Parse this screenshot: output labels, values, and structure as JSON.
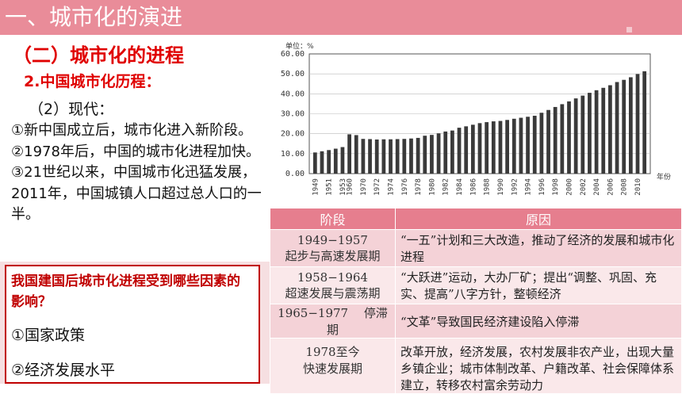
{
  "header": {
    "title": "一、城市化的演进"
  },
  "section": {
    "subtitle": "（二）城市化的进程",
    "heading": "2.中国城市化历程：",
    "subheading": "（2）现代：",
    "points": [
      "①新中国成立后，城市化进入新阶段。",
      "②1978年后，中国的城市化进程加快。",
      "③21世纪以来，中国城市化迅猛发展，2011年，中国城镇人口超过总人口的一半。"
    ]
  },
  "question": {
    "prompt": "我国建国后城市化进程受到哪些因素的影响？",
    "answers": [
      "①国家政策",
      "②经济发展水平"
    ]
  },
  "chart_data": {
    "type": "bar",
    "unit_label": "单位：%",
    "xlabel": "年份",
    "ylim": [
      0,
      60
    ],
    "yticks": [
      "0.00",
      "10.00",
      "20.00",
      "30.00",
      "40.00",
      "50.00",
      "60.00"
    ],
    "categories": [
      "1949",
      "1950",
      "1951",
      "1952",
      "1953",
      "1960",
      "1961",
      "1970",
      "1971",
      "1972",
      "1973",
      "1974",
      "1975",
      "1976",
      "1977",
      "1978",
      "1979",
      "1980",
      "1981",
      "1982",
      "1983",
      "1984",
      "1985",
      "1986",
      "1987",
      "1988",
      "1989",
      "1990",
      "1991",
      "1992",
      "1993",
      "1994",
      "1995",
      "1996",
      "1997",
      "1998",
      "1999",
      "2000",
      "2001",
      "2002",
      "2003",
      "2004",
      "2005",
      "2006",
      "2007",
      "2008",
      "2009",
      "2010",
      "2011"
    ],
    "xtick_labels": [
      "1949",
      "1951",
      "1953",
      "1960",
      "1970",
      "1972",
      "1974",
      "1976",
      "1978",
      "1980",
      "1982",
      "1984",
      "1986",
      "1988",
      "1990",
      "1992",
      "1994",
      "1996",
      "1998",
      "2000",
      "2002",
      "2004",
      "2006",
      "2008",
      "2010"
    ],
    "values": [
      10.6,
      11.2,
      11.8,
      12.5,
      13.3,
      19.7,
      19.3,
      17.4,
      17.3,
      17.1,
      17.2,
      17.2,
      17.3,
      17.4,
      17.6,
      17.9,
      19.0,
      19.4,
      20.2,
      21.1,
      21.6,
      23.0,
      23.7,
      24.5,
      25.3,
      25.8,
      26.2,
      26.4,
      26.9,
      27.5,
      28.0,
      28.5,
      29.0,
      30.5,
      31.9,
      33.4,
      34.8,
      36.2,
      37.7,
      39.1,
      40.5,
      41.8,
      43.0,
      44.3,
      45.9,
      47.0,
      48.3,
      49.9,
      51.3
    ]
  },
  "table": {
    "headers": [
      "阶段",
      "原因"
    ],
    "rows": [
      {
        "stage": [
          "1949−1957",
          "起步与高速发展期"
        ],
        "reason": "“一五”计划和三大改造，推动了经济的发展和城市化进程"
      },
      {
        "stage": [
          "1958−1964",
          "超速发展与震荡期"
        ],
        "reason": "“大跃进”运动，大办厂矿；提出“调整、巩固、充实、提高”八字方针，整顿经济"
      },
      {
        "stage": [
          "1965−1977　 停滞",
          "期"
        ],
        "reason": "“文革”导致国民经济建设陷入停滞"
      },
      {
        "stage": [
          "1978至今",
          "快速发展期"
        ],
        "reason": "改革开放，经济发展，农村发展非农产业，出现大量乡镇企业；城市体制改革、户籍改革、社会保障体系建立，转移农村富余劳动力"
      }
    ]
  }
}
